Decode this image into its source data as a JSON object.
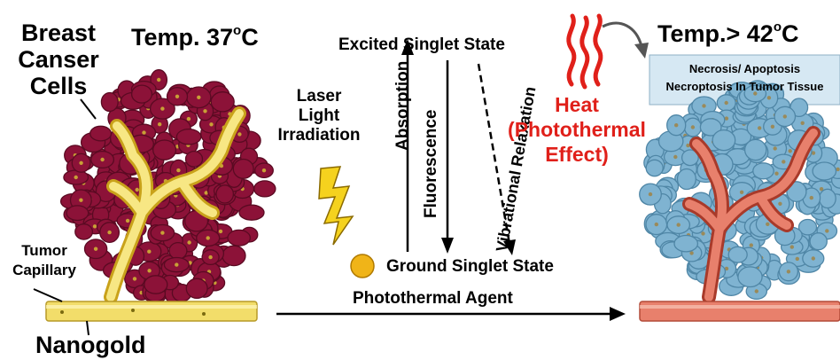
{
  "labels": {
    "cells": [
      "Breast",
      "Canser",
      "Cells"
    ],
    "temp_left": "Temp. 37",
    "temp_left_unit": "o",
    "temp_left_c": "C",
    "temp_right": "Temp.> 42",
    "temp_right_unit": "o",
    "temp_right_c": "C",
    "excited": "Excited Singlet State",
    "ground": "Ground Singlet State",
    "agent": "Photothermal Agent",
    "laser": [
      "Laser",
      "Light",
      "Irradiation"
    ],
    "absorption": "Absorption",
    "fluorescence": "Fluorescence",
    "vibrational": "Vibrational Relaxation",
    "heat": [
      "Heat",
      "(Photothermal",
      "Effect)"
    ],
    "necrosis": [
      "Necrosis/ Apoptosis",
      "Necroptosis In Tumor Tissue"
    ],
    "tumor_capillary": [
      "Tumor",
      "Capillary"
    ],
    "nanogold": "Nanogold"
  },
  "colors": {
    "tumor_red": "#8c1238",
    "tumor_dark": "#5a0a22",
    "tumor_blue": "#7fb3d1",
    "vessel_yellow": "#f2dd6a",
    "vessel_red": "#e06a56",
    "heat_red": "#e0201a",
    "necrosis_box": "#d6e8f3",
    "nanoparticle": "#f0b418"
  }
}
